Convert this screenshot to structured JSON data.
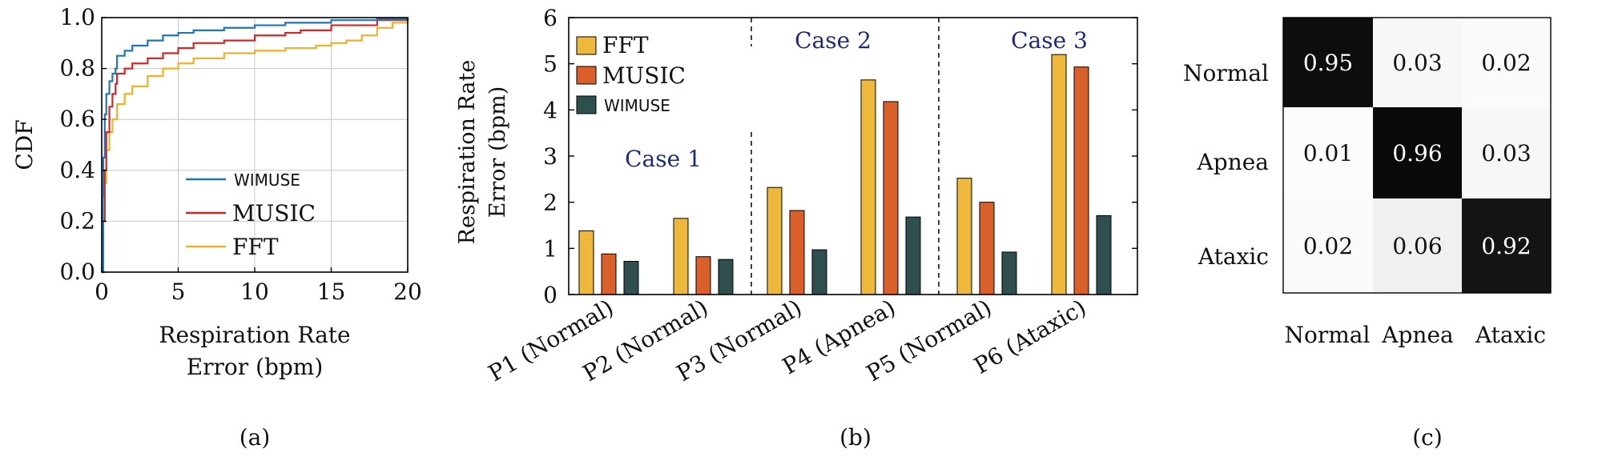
{
  "colors": {
    "fft": "#EDB83C",
    "music": "#D95F2B",
    "wimuse": "#2F4F4F",
    "navy": "#1F2A7A",
    "wimuse_line": "#1F77B4",
    "music_line": "#D62728",
    "fft_line": "#F0B12A"
  },
  "chart_data": [
    {
      "type": "line",
      "caption": "(a)",
      "xlabel_line1": "Respiration Rate",
      "xlabel_line2": "Error (bpm)",
      "ylabel": "CDF",
      "xlim": [
        0,
        20
      ],
      "ylim": [
        0,
        1
      ],
      "xticks": [
        0,
        5,
        10,
        15,
        20
      ],
      "yticks": [
        "0.0",
        "0.2",
        "0.4",
        "0.6",
        "0.8",
        "1.0"
      ],
      "grid": true,
      "legend_position": "lower-right",
      "series": [
        {
          "name": "WIMUSE",
          "color_key": "wimuse_line",
          "x": [
            0,
            0.05,
            0.1,
            0.2,
            0.3,
            0.5,
            0.7,
            0.9,
            1.0,
            1.5,
            2,
            3,
            4,
            5,
            6,
            8,
            10,
            12,
            15,
            18,
            20
          ],
          "y": [
            0,
            0.3,
            0.45,
            0.62,
            0.7,
            0.75,
            0.78,
            0.8,
            0.85,
            0.87,
            0.89,
            0.91,
            0.93,
            0.94,
            0.95,
            0.96,
            0.97,
            0.98,
            0.99,
            0.995,
            1.0
          ]
        },
        {
          "name": "MUSIC",
          "color_key": "music_line",
          "x": [
            0,
            0.1,
            0.2,
            0.3,
            0.5,
            0.7,
            0.9,
            1.0,
            1.5,
            2,
            3,
            4,
            5,
            6,
            8,
            10,
            12,
            13,
            15,
            18,
            20
          ],
          "y": [
            0,
            0.2,
            0.4,
            0.55,
            0.65,
            0.7,
            0.74,
            0.78,
            0.8,
            0.82,
            0.84,
            0.86,
            0.88,
            0.9,
            0.91,
            0.93,
            0.94,
            0.95,
            0.97,
            0.99,
            1.0
          ]
        },
        {
          "name": "FFT",
          "color_key": "fft_line",
          "x": [
            0,
            0.1,
            0.3,
            0.5,
            0.7,
            1.0,
            1.5,
            2,
            3,
            4,
            5,
            6,
            8,
            10,
            12,
            14,
            15,
            16,
            17,
            18,
            19,
            20
          ],
          "y": [
            0,
            0.35,
            0.48,
            0.55,
            0.6,
            0.66,
            0.7,
            0.73,
            0.77,
            0.8,
            0.82,
            0.84,
            0.86,
            0.87,
            0.88,
            0.89,
            0.9,
            0.91,
            0.93,
            0.96,
            0.98,
            1.0
          ]
        }
      ]
    },
    {
      "type": "bar",
      "caption": "(b)",
      "ylabel_line1": "Respiration Rate",
      "ylabel_line2": "Error (bpm)",
      "ylim": [
        0,
        6
      ],
      "yticks": [
        "0",
        "1",
        "2",
        "3",
        "4",
        "5",
        "6"
      ],
      "categories": [
        "P1 (Normal)",
        "P2 (Normal)",
        "P3 (Normal)",
        "P4 (Apnea)",
        "P5 (Normal)",
        "P6 (Ataxic)"
      ],
      "series": [
        {
          "name": "FFT",
          "color_key": "fft",
          "values": [
            1.38,
            1.65,
            2.32,
            4.65,
            2.52,
            5.2
          ]
        },
        {
          "name": "MUSIC",
          "color_key": "music",
          "values": [
            0.88,
            0.82,
            1.82,
            4.18,
            2.0,
            4.93
          ]
        },
        {
          "name": "WIMUSE",
          "color_key": "wimuse",
          "values": [
            0.72,
            0.76,
            0.97,
            1.68,
            0.92,
            1.71
          ]
        }
      ],
      "cases": [
        "Case 1",
        "Case 2",
        "Case 3"
      ],
      "legend_position": "top-left"
    },
    {
      "type": "heatmap",
      "caption": "(c)",
      "row_labels": [
        "Normal",
        "Apnea",
        "Ataxic"
      ],
      "col_labels": [
        "Normal",
        "Apnea",
        "Ataxic"
      ],
      "values": [
        [
          0.95,
          0.03,
          0.02
        ],
        [
          0.01,
          0.96,
          0.03
        ],
        [
          0.02,
          0.06,
          0.92
        ]
      ],
      "cell_text": [
        [
          "0.95",
          "0.03",
          "0.02"
        ],
        [
          "0.01",
          "0.96",
          "0.03"
        ],
        [
          "0.02",
          "0.06",
          "0.92"
        ]
      ]
    }
  ]
}
